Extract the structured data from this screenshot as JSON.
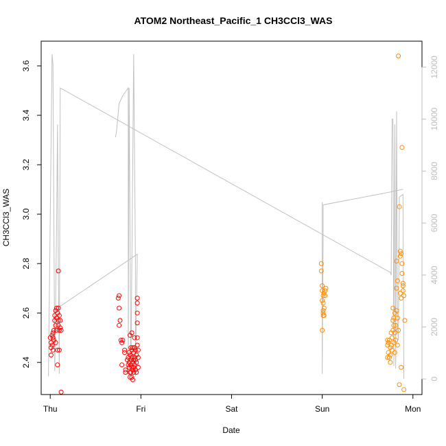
{
  "chart_data": {
    "type": "scatter",
    "title": "ATOM2 Northeast_Pacific_1 CH3CCl3_WAS",
    "xlabel": "Date",
    "ylabel": "CH3CCl3_WAS",
    "x_ticks": [
      "Thu",
      "Fri",
      "Sat",
      "Sun",
      "Mon"
    ],
    "xlim": [
      -0.1,
      4.1
    ],
    "ylim": [
      2.27,
      3.7
    ],
    "y_ticks": [
      2.4,
      2.6,
      2.8,
      3.0,
      3.2,
      3.4,
      3.6
    ],
    "y2lim": [
      -600,
      13000
    ],
    "y2_ticks": [
      0,
      2000,
      4000,
      6000,
      8000,
      10000,
      12000
    ],
    "grid": false,
    "series": [
      {
        "color": "#ff0000",
        "marker": "open-circle",
        "points": [
          [
            0.0,
            2.5
          ],
          [
            0.01,
            2.48
          ],
          [
            0.01,
            2.46
          ],
          [
            0.01,
            2.43
          ],
          [
            0.02,
            2.51
          ],
          [
            0.02,
            2.47
          ],
          [
            0.03,
            2.52
          ],
          [
            0.03,
            2.5
          ],
          [
            0.03,
            2.45
          ],
          [
            0.04,
            2.53
          ],
          [
            0.04,
            2.49
          ],
          [
            0.05,
            2.57
          ],
          [
            0.05,
            2.59
          ],
          [
            0.06,
            2.55
          ],
          [
            0.06,
            2.61
          ],
          [
            0.06,
            2.48
          ],
          [
            0.07,
            2.62
          ],
          [
            0.07,
            2.58
          ],
          [
            0.07,
            2.53
          ],
          [
            0.08,
            2.6
          ],
          [
            0.08,
            2.45
          ],
          [
            0.08,
            2.39
          ],
          [
            0.09,
            2.57
          ],
          [
            0.09,
            2.55
          ],
          [
            0.09,
            2.62
          ],
          [
            0.1,
            2.59
          ],
          [
            0.1,
            2.53
          ],
          [
            0.1,
            2.45
          ],
          [
            0.11,
            2.57
          ],
          [
            0.11,
            2.54
          ],
          [
            0.12,
            2.53
          ],
          [
            0.12,
            2.28
          ],
          [
            0.09,
            2.77
          ],
          [
            0.76,
            2.67
          ],
          [
            0.75,
            2.66
          ],
          [
            0.76,
            2.62
          ],
          [
            0.77,
            2.57
          ],
          [
            0.76,
            2.55
          ],
          [
            0.78,
            2.49
          ],
          [
            0.79,
            2.48
          ],
          [
            0.8,
            2.49
          ],
          [
            0.79,
            2.39
          ],
          [
            0.82,
            2.45
          ],
          [
            0.82,
            2.44
          ],
          [
            0.83,
            2.37
          ],
          [
            0.83,
            2.36
          ],
          [
            0.85,
            2.41
          ],
          [
            0.86,
            2.39
          ],
          [
            0.86,
            2.42
          ],
          [
            0.87,
            2.44
          ],
          [
            0.87,
            2.4
          ],
          [
            0.87,
            2.38
          ],
          [
            0.88,
            2.51
          ],
          [
            0.88,
            2.43
          ],
          [
            0.88,
            2.36
          ],
          [
            0.88,
            2.34
          ],
          [
            0.89,
            2.46
          ],
          [
            0.89,
            2.41
          ],
          [
            0.89,
            2.39
          ],
          [
            0.89,
            2.36
          ],
          [
            0.9,
            2.52
          ],
          [
            0.9,
            2.45
          ],
          [
            0.9,
            2.42
          ],
          [
            0.9,
            2.38
          ],
          [
            0.9,
            2.34
          ],
          [
            0.91,
            2.46
          ],
          [
            0.91,
            2.4
          ],
          [
            0.91,
            2.37
          ],
          [
            0.91,
            2.33
          ],
          [
            0.92,
            2.44
          ],
          [
            0.92,
            2.41
          ],
          [
            0.92,
            2.38
          ],
          [
            0.92,
            2.36
          ],
          [
            0.93,
            2.5
          ],
          [
            0.93,
            2.46
          ],
          [
            0.93,
            2.42
          ],
          [
            0.93,
            2.39
          ],
          [
            0.94,
            2.45
          ],
          [
            0.94,
            2.41
          ],
          [
            0.94,
            2.37
          ],
          [
            0.95,
            2.43
          ],
          [
            0.95,
            2.4
          ],
          [
            0.95,
            2.36
          ],
          [
            0.96,
            2.66
          ],
          [
            0.96,
            2.64
          ],
          [
            0.96,
            2.6
          ],
          [
            0.96,
            2.56
          ],
          [
            0.96,
            2.5
          ],
          [
            0.96,
            2.47
          ],
          [
            0.97,
            2.45
          ],
          [
            0.97,
            2.42
          ],
          [
            0.97,
            2.38
          ]
        ]
      },
      {
        "color": "#ff8c00",
        "marker": "open-circle",
        "points": [
          [
            2.99,
            2.8
          ],
          [
            2.99,
            2.77
          ],
          [
            3.0,
            2.71
          ],
          [
            3.0,
            2.69
          ],
          [
            3.0,
            2.65
          ],
          [
            3.01,
            2.67
          ],
          [
            3.01,
            2.64
          ],
          [
            3.01,
            2.61
          ],
          [
            3.01,
            2.59
          ],
          [
            3.02,
            2.68
          ],
          [
            3.02,
            2.62
          ],
          [
            3.02,
            2.59
          ],
          [
            3.03,
            2.69
          ],
          [
            3.03,
            2.67
          ],
          [
            3.04,
            2.7
          ],
          [
            3.0,
            2.53
          ],
          [
            3.01,
            2.6
          ],
          [
            3.72,
            2.49
          ],
          [
            3.72,
            2.47
          ],
          [
            3.72,
            2.42
          ],
          [
            3.73,
            2.48
          ],
          [
            3.73,
            2.44
          ],
          [
            3.74,
            2.42
          ],
          [
            3.74,
            2.49
          ],
          [
            3.75,
            2.46
          ],
          [
            3.75,
            2.43
          ],
          [
            3.75,
            2.4
          ],
          [
            3.76,
            2.47
          ],
          [
            3.76,
            2.52
          ],
          [
            3.77,
            2.45
          ],
          [
            3.77,
            2.5
          ],
          [
            3.78,
            2.53
          ],
          [
            3.78,
            2.62
          ],
          [
            3.78,
            2.57
          ],
          [
            3.79,
            2.55
          ],
          [
            3.79,
            2.48
          ],
          [
            3.79,
            2.58
          ],
          [
            3.8,
            2.44
          ],
          [
            3.8,
            2.52
          ],
          [
            3.8,
            2.6
          ],
          [
            3.81,
            2.49
          ],
          [
            3.81,
            2.55
          ],
          [
            3.82,
            2.61
          ],
          [
            3.82,
            2.81
          ],
          [
            3.82,
            2.7
          ],
          [
            3.83,
            2.73
          ],
          [
            3.83,
            2.58
          ],
          [
            3.83,
            2.47
          ],
          [
            3.84,
            2.53
          ],
          [
            3.84,
            3.64
          ],
          [
            3.85,
            3.03
          ],
          [
            3.85,
            2.31
          ],
          [
            3.86,
            2.83
          ],
          [
            3.86,
            2.85
          ],
          [
            3.86,
            2.68
          ],
          [
            3.87,
            2.66
          ],
          [
            3.87,
            2.84
          ],
          [
            3.87,
            2.38
          ],
          [
            3.88,
            3.27
          ],
          [
            3.88,
            2.8
          ],
          [
            3.88,
            2.76
          ],
          [
            3.89,
            2.71
          ],
          [
            3.89,
            2.72
          ],
          [
            3.89,
            2.69
          ],
          [
            3.9,
            2.67
          ],
          [
            3.9,
            2.29
          ],
          [
            3.91,
            2.57
          ]
        ]
      }
    ],
    "line_series": {
      "color": "#c0c0c0",
      "axis": "right",
      "points": [
        [
          -0.01,
          0
        ],
        [
          0.01,
          5000
        ],
        [
          0.02,
          12500
        ],
        [
          0.04,
          11800
        ],
        [
          0.05,
          600
        ],
        [
          0.06,
          200
        ],
        [
          0.07,
          9000
        ],
        [
          0.08,
          9700
        ],
        [
          0.09,
          8000
        ],
        [
          0.1,
          800
        ],
        [
          0.11,
          2500
        ],
        [
          0.12,
          11200
        ],
        [
          0.96,
          3000
        ],
        [
          0.73,
          9300
        ],
        [
          0.74,
          9600
        ],
        [
          0.75,
          10500
        ],
        [
          0.77,
          10600
        ],
        [
          0.78,
          10700
        ],
        [
          0.79,
          11300
        ],
        [
          0.86,
          11300
        ],
        [
          0.87,
          100
        ],
        [
          0.88,
          11300
        ],
        [
          0.89,
          200
        ],
        [
          0.9,
          11300
        ],
        [
          0.91,
          100
        ],
        [
          0.93,
          12500
        ],
        [
          0.93,
          4000
        ],
        [
          0.99,
          100
        ],
        [
          0.99,
          3300
        ]
      ],
      "segments": [
        [
          [
            -0.02,
            100
          ],
          [
            0.02,
            12500
          ],
          [
            0.03,
            12100
          ],
          [
            0.05,
            300
          ],
          [
            0.07,
            6000
          ],
          [
            0.08,
            9800
          ],
          [
            0.09,
            4000
          ],
          [
            0.1,
            200
          ],
          [
            0.11,
            11200
          ],
          [
            3.75,
            4100
          ],
          [
            3.76,
            4000
          ],
          [
            3.77,
            10000
          ],
          [
            3.78,
            10000
          ],
          [
            3.79,
            500
          ],
          [
            3.8,
            9800
          ],
          [
            3.81,
            400
          ],
          [
            3.82,
            10300
          ],
          [
            3.83,
            2000
          ],
          [
            3.84,
            1500
          ],
          [
            3.85,
            7000
          ],
          [
            3.89,
            7100
          ],
          [
            3.9,
            0
          ]
        ],
        [
          [
            3.0,
            6800
          ],
          [
            3.0,
            200
          ],
          [
            3.01,
            5400
          ],
          [
            3.01,
            6700
          ],
          [
            3.76,
            7200
          ],
          [
            3.89,
            7300
          ]
        ],
        [
          [
            0.72,
            9300
          ],
          [
            0.73,
            9500
          ],
          [
            0.76,
            10600
          ],
          [
            0.8,
            10900
          ],
          [
            0.86,
            11200
          ],
          [
            0.86,
            100
          ],
          [
            0.87,
            11200
          ],
          [
            0.89,
            300
          ],
          [
            0.92,
            12500
          ],
          [
            0.94,
            4500
          ],
          [
            0.94,
            100
          ],
          [
            0.96,
            4800
          ],
          [
            0.11,
            2800
          ],
          [
            0.1,
            2900
          ]
        ]
      ]
    }
  }
}
